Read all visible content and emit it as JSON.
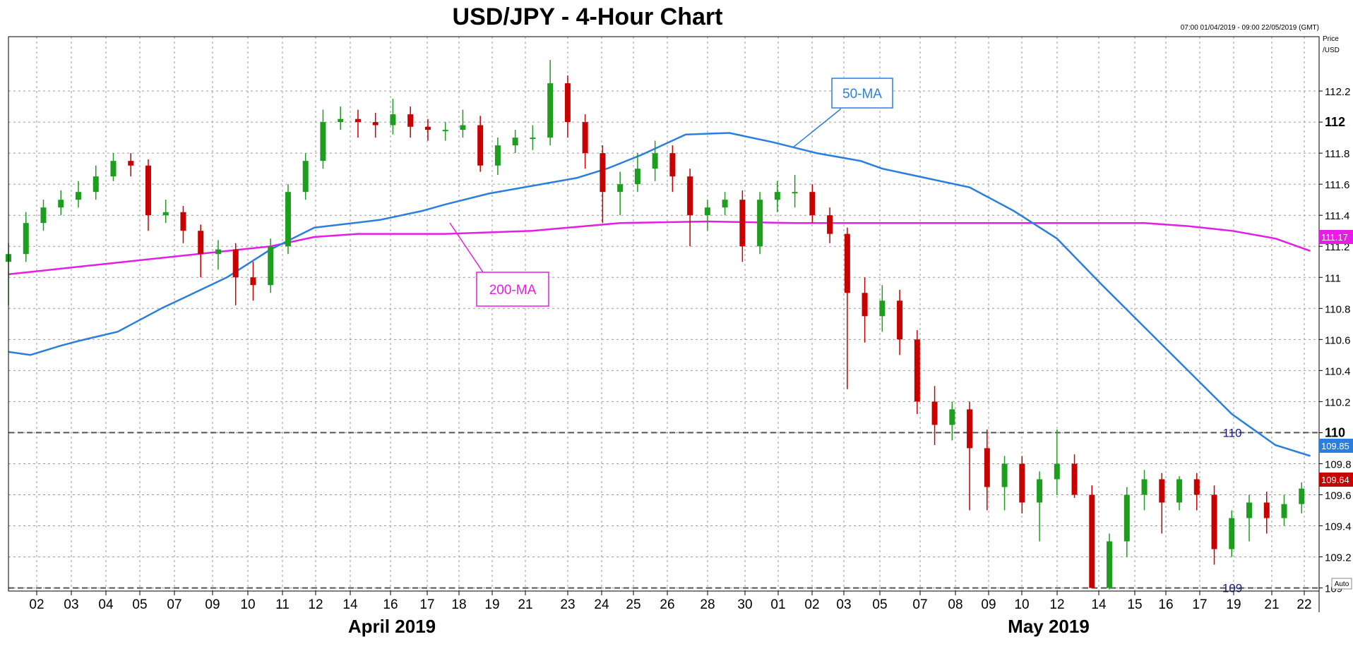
{
  "chart_data": {
    "type": "candlestick",
    "title": "USD/JPY - 4-Hour Chart",
    "timestamp_range": "07:00 01/04/2019 - 09:00 22/05/2019 (GMT)",
    "ylabel": "Price\n/USD",
    "ylim": [
      108.98,
      112.55
    ],
    "y_ticks": [
      "109",
      "109.2",
      "109.4",
      "109.6",
      "109.8",
      "110",
      "110.2",
      "110.4",
      "110.6",
      "110.8",
      "111",
      "111.2",
      "111.4",
      "111.6",
      "111.8",
      "112",
      "112.2"
    ],
    "y_ticks_bold": [
      "110",
      "112"
    ],
    "x_ticks": [
      "02",
      "03",
      "04",
      "05",
      "07",
      "09",
      "10",
      "11",
      "12",
      "14",
      "16",
      "17",
      "18",
      "19",
      "21",
      "23",
      "24",
      "25",
      "26",
      "28",
      "30",
      "01",
      "02",
      "03",
      "05",
      "07",
      "08",
      "09",
      "10",
      "12",
      "14",
      "15",
      "16",
      "17",
      "19",
      "21",
      "22"
    ],
    "months": [
      "April 2019",
      "May 2019"
    ],
    "grid": true,
    "auto_label": "Auto",
    "colors": {
      "bull": "#1e9e1e",
      "bear": "#c80000",
      "ma50": "#2a7fde",
      "ma200": "#e41ee4",
      "level": "#1a1a8c"
    },
    "horizontal_levels": [
      {
        "value": 110,
        "label": "110"
      },
      {
        "value": 109,
        "label": "109"
      }
    ],
    "annotations": [
      {
        "label": "50-MA",
        "series": "50-MA"
      },
      {
        "label": "200-MA",
        "series": "200-MA"
      }
    ],
    "last_values": [
      {
        "label": "111.17",
        "color": "#e41ee4"
      },
      {
        "label": "109.85",
        "color": "#2a7fde"
      },
      {
        "label": "109.64",
        "color": "#c80000"
      }
    ],
    "series": [
      {
        "name": "50-MA",
        "x": [
          0,
          5,
          12,
          16,
          25,
          35,
          50,
          60,
          70,
          85,
          95,
          100,
          110,
          120,
          130,
          137,
          145,
          155,
          165,
          175,
          185,
          195,
          200,
          210,
          220,
          230,
          240,
          250,
          260,
          270,
          280,
          290,
          298
        ],
        "values": [
          110.52,
          110.5,
          110.56,
          110.59,
          110.65,
          110.8,
          111.0,
          111.18,
          111.32,
          111.37,
          111.43,
          111.47,
          111.54,
          111.59,
          111.64,
          111.7,
          111.79,
          111.92,
          111.93,
          111.87,
          111.8,
          111.75,
          111.7,
          111.64,
          111.58,
          111.43,
          111.25,
          110.96,
          110.68,
          110.4,
          110.12,
          109.92,
          109.85
        ]
      },
      {
        "name": "200-MA",
        "x": [
          0,
          20,
          40,
          60,
          70,
          80,
          90,
          100,
          120,
          140,
          160,
          180,
          200,
          220,
          240,
          260,
          270,
          280,
          290,
          298
        ],
        "values": [
          111.02,
          111.08,
          111.14,
          111.2,
          111.26,
          111.28,
          111.28,
          111.28,
          111.3,
          111.35,
          111.36,
          111.35,
          111.35,
          111.35,
          111.35,
          111.35,
          111.33,
          111.3,
          111.25,
          111.17
        ]
      },
      {
        "name": "USD/JPY",
        "x": [
          0,
          4,
          8,
          12,
          16,
          20,
          24,
          28,
          32,
          36,
          40,
          44,
          48,
          52,
          56,
          60,
          64,
          68,
          72,
          76,
          80,
          84,
          88,
          92,
          96,
          100,
          104,
          108,
          112,
          116,
          120,
          124,
          128,
          132,
          136,
          140,
          144,
          148,
          152,
          156,
          160,
          164,
          168,
          172,
          176,
          180,
          184,
          188,
          192,
          196,
          200,
          204,
          208,
          212,
          216,
          220,
          224,
          228,
          232,
          236,
          240,
          244,
          248,
          252,
          256,
          260,
          264,
          268,
          272,
          276,
          280,
          284,
          288,
          292,
          296
        ],
        "open": [
          111.1,
          111.15,
          111.35,
          111.45,
          111.5,
          111.55,
          111.65,
          111.75,
          111.72,
          111.4,
          111.42,
          111.3,
          111.15,
          111.18,
          111.0,
          110.95,
          111.2,
          111.55,
          111.75,
          112.0,
          112.02,
          112.0,
          111.98,
          112.05,
          111.97,
          111.95,
          111.95,
          111.98,
          111.72,
          111.85,
          111.9,
          111.9,
          112.25,
          112.0,
          111.8,
          111.55,
          111.6,
          111.7,
          111.8,
          111.65,
          111.4,
          111.45,
          111.5,
          111.2,
          111.5,
          111.55,
          111.55,
          111.4,
          111.28,
          110.9,
          110.75,
          110.85,
          110.6,
          110.2,
          110.05,
          110.15,
          109.9,
          109.65,
          109.8,
          109.55,
          109.7,
          109.8,
          109.6,
          109.0,
          109.3,
          109.6,
          109.7,
          109.55,
          109.7,
          109.6,
          109.25,
          109.45,
          109.55,
          109.45,
          109.54
        ],
        "close": [
          111.15,
          111.35,
          111.45,
          111.5,
          111.55,
          111.65,
          111.75,
          111.72,
          111.4,
          111.42,
          111.3,
          111.15,
          111.18,
          111.0,
          110.95,
          111.2,
          111.55,
          111.75,
          112.0,
          112.02,
          112.0,
          111.98,
          112.05,
          111.97,
          111.95,
          111.95,
          111.98,
          111.72,
          111.85,
          111.9,
          111.9,
          112.25,
          112.0,
          111.8,
          111.55,
          111.6,
          111.7,
          111.8,
          111.65,
          111.4,
          111.45,
          111.5,
          111.2,
          111.5,
          111.55,
          111.55,
          111.4,
          111.28,
          110.9,
          110.75,
          110.85,
          110.6,
          110.2,
          110.05,
          110.15,
          109.9,
          109.65,
          109.8,
          109.55,
          109.7,
          109.8,
          109.6,
          109.0,
          109.3,
          109.6,
          109.7,
          109.55,
          109.7,
          109.6,
          109.25,
          109.45,
          109.55,
          109.45,
          109.54,
          109.64
        ],
        "high": [
          111.22,
          111.42,
          111.5,
          111.56,
          111.62,
          111.72,
          111.8,
          111.8,
          111.76,
          111.5,
          111.46,
          111.34,
          111.24,
          111.22,
          111.1,
          111.25,
          111.6,
          111.8,
          112.08,
          112.1,
          112.08,
          112.06,
          112.15,
          112.1,
          112.02,
          112.0,
          112.08,
          112.04,
          111.9,
          111.95,
          111.98,
          112.4,
          112.3,
          112.05,
          111.85,
          111.68,
          111.8,
          111.88,
          111.85,
          111.7,
          111.5,
          111.55,
          111.56,
          111.55,
          111.62,
          111.66,
          111.6,
          111.45,
          111.32,
          111.0,
          110.95,
          110.92,
          110.66,
          110.3,
          110.2,
          110.2,
          110.02,
          109.85,
          109.85,
          109.75,
          110.02,
          109.86,
          109.66,
          109.35,
          109.65,
          109.76,
          109.74,
          109.72,
          109.74,
          109.66,
          109.5,
          109.6,
          109.62,
          109.6,
          109.68
        ],
        "low": [
          110.82,
          111.1,
          111.3,
          111.4,
          111.45,
          111.5,
          111.62,
          111.65,
          111.3,
          111.35,
          111.22,
          111.0,
          111.05,
          110.82,
          110.85,
          110.9,
          111.15,
          111.5,
          111.7,
          111.95,
          111.9,
          111.9,
          111.92,
          111.9,
          111.88,
          111.88,
          111.9,
          111.68,
          111.66,
          111.8,
          111.82,
          111.85,
          111.9,
          111.7,
          111.35,
          111.4,
          111.55,
          111.62,
          111.55,
          111.2,
          111.3,
          111.4,
          111.1,
          111.15,
          111.42,
          111.45,
          111.35,
          111.22,
          110.28,
          110.58,
          110.65,
          110.5,
          110.12,
          109.92,
          109.95,
          109.5,
          109.5,
          109.5,
          109.48,
          109.3,
          109.6,
          109.58,
          109.0,
          108.99,
          109.2,
          109.5,
          109.35,
          109.5,
          109.5,
          109.15,
          109.2,
          109.3,
          109.35,
          109.4,
          109.48
        ]
      }
    ]
  }
}
